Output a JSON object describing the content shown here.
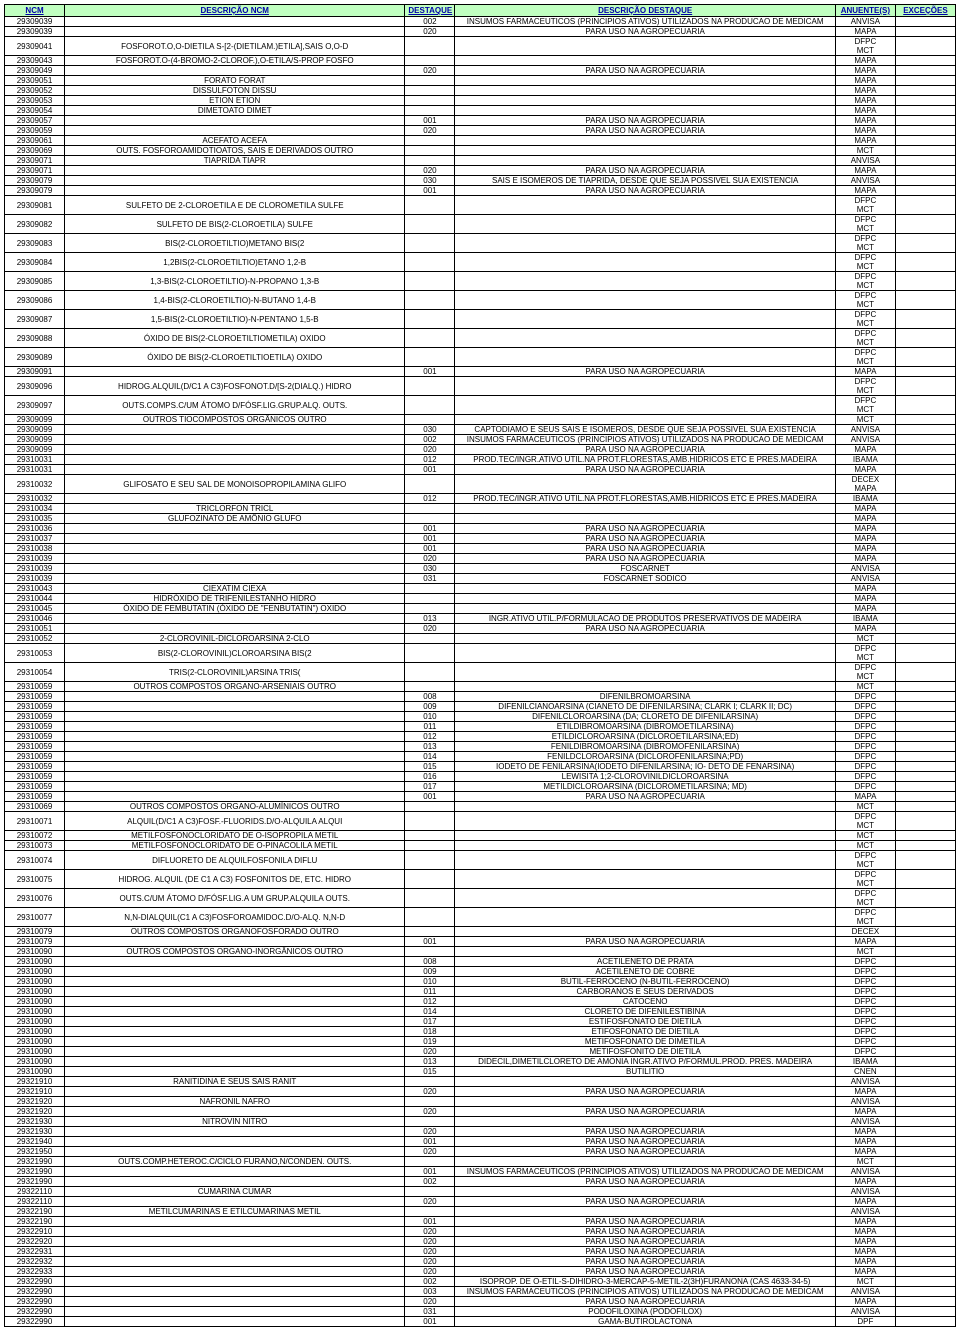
{
  "columns": [
    "NCM",
    "DESCRIÇÃO NCM",
    "DESTAQUE",
    "DESCRIÇÃO DESTAQUE",
    "ANUENTE(S)",
    "EXCEÇÕES"
  ],
  "rows": [
    [
      "29309039",
      "",
      "002",
      "INSUMOS FARMACEUTICOS (PRINCIPIOS ATIVOS) UTILIZADOS NA PRODUCAO DE MEDICAM",
      "ANVISA",
      ""
    ],
    [
      "29309039",
      "",
      "020",
      "PARA USO NA AGROPECUARIA",
      "MAPA",
      ""
    ],
    [
      "29309041",
      "FOSFOROT.O,O-DIETILA S-[2-(DIETILAM.)ETILA],SAIS        O,O-D",
      "",
      "",
      "DFPC\nMCT",
      "",
      true
    ],
    [
      "29309043",
      "FOSFOROT.O-(4-BROMO-2-CLOROF.),O-ETILA/S-PROP        FOSFO",
      "",
      "",
      "MAPA",
      ""
    ],
    [
      "29309049",
      "",
      "020",
      "PARA USO NA AGROPECUARIA",
      "MAPA",
      ""
    ],
    [
      "29309051",
      "FORATO                                              FORAT",
      "",
      "",
      "MAPA",
      ""
    ],
    [
      "29309052",
      "DISSULFOTON                                         DISSU",
      "",
      "",
      "MAPA",
      ""
    ],
    [
      "29309053",
      "ETION                                               ETION",
      "",
      "",
      "MAPA",
      ""
    ],
    [
      "29309054",
      "DIMETOATO                                           DIMET",
      "",
      "",
      "MAPA",
      ""
    ],
    [
      "29309057",
      "",
      "001",
      "PARA USO NA AGROPECUARIA",
      "MAPA",
      ""
    ],
    [
      "29309059",
      "",
      "020",
      "PARA USO NA AGROPECUARIA",
      "MAPA",
      ""
    ],
    [
      "29309061",
      "ACEFATO                                             ACEFA",
      "",
      "",
      "MAPA",
      ""
    ],
    [
      "29309069",
      "OUTS. FOSFOROAMIDOTIOATOS, SAIS E DERIVADOS        OUTRO",
      "",
      "",
      "MCT",
      ""
    ],
    [
      "29309071",
      "TIAPRIDA                                            TIAPR",
      "",
      "",
      "ANVISA",
      ""
    ],
    [
      "29309071",
      "",
      "020",
      "PARA USO NA AGROPECUARIA",
      "MAPA",
      ""
    ],
    [
      "29309079",
      "",
      "030",
      "SAIS E ISOMEROS DE TIAPRIDA, DESDE QUE SEJA POSSIVEL SUA EXISTENCIA",
      "ANVISA",
      ""
    ],
    [
      "29309079",
      "",
      "001",
      "PARA USO NA AGROPECUARIA",
      "MAPA",
      ""
    ],
    [
      "29309081",
      "SULFETO DE 2-CLOROETILA E DE CLOROMETILA        SULFE",
      "",
      "",
      "DFPC\nMCT",
      "",
      true
    ],
    [
      "29309082",
      "SULFETO DE BIS(2-CLOROETILA)                    SULFE",
      "",
      "",
      "DFPC\nMCT",
      "",
      true
    ],
    [
      "29309083",
      "BIS(2-CLOROETILTIO)METANO                       BIS(2",
      "",
      "",
      "DFPC\nMCT",
      "",
      true
    ],
    [
      "29309084",
      "1,2BIS(2-CLOROETILTIO)ETANO                     1,2-B",
      "",
      "",
      "DFPC\nMCT",
      "",
      true
    ],
    [
      "29309085",
      "1,3-BIS(2-CLOROETILTIO)-N-PROPANO               1,3-B",
      "",
      "",
      "DFPC\nMCT",
      "",
      true
    ],
    [
      "29309086",
      "1,4-BIS(2-CLOROETILTIO)-N-BUTANO                1,4-B",
      "",
      "",
      "DFPC\nMCT",
      "",
      true
    ],
    [
      "29309087",
      "1,5-BIS(2-CLOROETILTIO)-N-PENTANO               1,5-B",
      "",
      "",
      "DFPC\nMCT",
      "",
      true
    ],
    [
      "29309088",
      "ÓXIDO DE BIS(2-CLOROETILTIOMETILA)              OXIDO",
      "",
      "",
      "DFPC\nMCT",
      "",
      true
    ],
    [
      "29309089",
      "ÓXIDO DE BIS(2-CLOROETILTIOETILA)               OXIDO",
      "",
      "",
      "DFPC\nMCT",
      "",
      true
    ],
    [
      "29309091",
      "",
      "001",
      "PARA USO NA AGROPECUARIA",
      "MAPA",
      ""
    ],
    [
      "29309096",
      "HIDROG.ALQUIL(D/C1 A C3)FOSFONOT.D/[S-2(DIALQ.)     HIDRO",
      "",
      "",
      "DFPC\nMCT",
      "",
      true
    ],
    [
      "29309097",
      "OUTS.COMPS.C/UM ÁTOMO D/FÓSF.LIG.GRUP.ALQ.        OUTS.",
      "",
      "",
      "DFPC\nMCT",
      "",
      true
    ],
    [
      "29309099",
      "OUTROS TIOCOMPOSTOS ORGÂNICOS                   OUTRO",
      "",
      "",
      "MCT",
      ""
    ],
    [
      "29309099",
      "",
      "030",
      "CAPTODIAMO  E SEUS SAIS E ISOMEROS, DESDE QUE SEJA POSSIVEL SUA EXISTENCIA",
      "ANVISA",
      ""
    ],
    [
      "29309099",
      "",
      "002",
      "INSUMOS FARMACEUTICOS (PRINCIPIOS ATIVOS) UTILIZADOS NA PRODUCAO DE MEDICAM",
      "ANVISA",
      ""
    ],
    [
      "29309099",
      "",
      "020",
      "PARA USO NA AGROPECUARIA",
      "MAPA",
      ""
    ],
    [
      "29310031",
      "",
      "012",
      "PROD.TEC/INGR.ATIVO UTIL.NA PROT.FLORESTAS,AMB.HIDRICOS ETC E PRES.MADEIRA",
      "IBAMA",
      ""
    ],
    [
      "29310031",
      "",
      "001",
      "PARA USO NA AGROPECUARIA",
      "MAPA",
      ""
    ],
    [
      "29310032",
      "GLIFOSATO E SEU SAL DE MONOISOPROPILAMINA        GLIFO",
      "",
      "",
      "DECEX\nMAPA",
      "",
      true
    ],
    [
      "29310032",
      "",
      "012",
      "PROD.TEC/INGR.ATIVO UTIL.NA PROT.FLORESTAS,AMB.HIDRICOS ETC E PRES.MADEIRA",
      "IBAMA",
      ""
    ],
    [
      "29310034",
      "TRICLORFON                                       TRICL",
      "",
      "",
      "MAPA",
      ""
    ],
    [
      "29310035",
      "GLUFOZINATO DE AMÔNIO                            GLUFO",
      "",
      "",
      "MAPA",
      ""
    ],
    [
      "29310036",
      "",
      "001",
      "PARA USO NA AGROPECUARIA",
      "MAPA",
      ""
    ],
    [
      "29310037",
      "",
      "001",
      "PARA USO NA AGROPECUARIA",
      "MAPA",
      ""
    ],
    [
      "29310038",
      "",
      "001",
      "PARA USO NA AGROPECUARIA",
      "MAPA",
      ""
    ],
    [
      "29310039",
      "",
      "020",
      "PARA USO NA AGROPECUARIA",
      "MAPA",
      ""
    ],
    [
      "29310039",
      "",
      "030",
      "FOSCARNET",
      "ANVISA",
      ""
    ],
    [
      "29310039",
      "",
      "031",
      "FOSCARNET SODICO",
      "ANVISA",
      ""
    ],
    [
      "29310043",
      "CIEXATIM                                         CIEXA",
      "",
      "",
      "MAPA",
      ""
    ],
    [
      "29310044",
      "HIDRÓXIDO DE TRIFENILESTANHO                     HIDRO",
      "",
      "",
      "MAPA",
      ""
    ],
    [
      "29310045",
      "ÓXIDO DE FEMBUTATIN  (ÓXIDO DE \"FENBUTATIN\")        OXIDO",
      "",
      "",
      "MAPA",
      ""
    ],
    [
      "29310046",
      "",
      "013",
      "INGR.ATIVO UTIL.P/FORMULACAO DE PRODUTOS PRESERVATIVOS DE MADEIRA",
      "IBAMA",
      ""
    ],
    [
      "29310051",
      "",
      "020",
      "PARA USO NA AGROPECUARIA",
      "MAPA",
      ""
    ],
    [
      "29310052",
      "2-CLOROVINIL-DICLOROARSINA                       2-CLO",
      "",
      "",
      "MCT",
      ""
    ],
    [
      "29310053",
      "BIS(2-CLOROVINIL)CLOROARSINA                     BIS(2",
      "",
      "",
      "DFPC\nMCT",
      "",
      true
    ],
    [
      "29310054",
      "TRIS(2-CLOROVINIL)ARSINA                         TRIS(",
      "",
      "",
      "DFPC\nMCT",
      "",
      true
    ],
    [
      "29310059",
      "OUTROS COMPOSTOS ORGANO-ARSENIAIS                OUTRO",
      "",
      "",
      "MCT",
      ""
    ],
    [
      "29310059",
      "",
      "008",
      "DIFENILBROMOARSINA",
      "DFPC",
      ""
    ],
    [
      "29310059",
      "",
      "009",
      "DIFENILCIANOARSINA (CIANETO DE DIFENILARSINA;     CLARK I; CLARK II; DC)",
      "DFPC",
      ""
    ],
    [
      "29310059",
      "",
      "010",
      "DIFENILCLOROARSINA  (DA; CLORETO DE DIFENILARSINA)",
      "DFPC",
      ""
    ],
    [
      "29310059",
      "",
      "011",
      "ETILDIBROMOARSINA (DIBROMOETILARSINA)",
      "DFPC",
      ""
    ],
    [
      "29310059",
      "",
      "012",
      "ETILDICLOROARSINA (DICLOROETILARSINA;ED)",
      "DFPC",
      ""
    ],
    [
      "29310059",
      "",
      "013",
      "FENILDIBROMOARSINA (DIBROMOFENILARSINA)",
      "DFPC",
      ""
    ],
    [
      "29310059",
      "",
      "014",
      "FENILDCLOROARSINA (DICLOROFENILARSINA;PD)",
      "DFPC",
      ""
    ],
    [
      "29310059",
      "",
      "015",
      "IODETO DE FENILARSINA(IODETO  DIFENILARSINA; IO-    DETO DE FENARSINA)",
      "DFPC",
      ""
    ],
    [
      "29310059",
      "",
      "016",
      "LEWISITA 1;2-CLOROVINILDICLOROARSINA",
      "DFPC",
      ""
    ],
    [
      "29310059",
      "",
      "017",
      "METILDICLOROARSINA (DICLOROMETILARSINA; MD)",
      "DFPC",
      ""
    ],
    [
      "29310059",
      "",
      "001",
      "PARA USO NA AGROPECUARIA",
      "MAPA",
      ""
    ],
    [
      "29310069",
      "OUTROS COMPOSTOS ORGANO-ALUMÍNICOS               OUTRO",
      "",
      "",
      "MCT",
      ""
    ],
    [
      "29310071",
      "ALQUIL(D/C1 A C3)FOSF.-FLUORIDS.D/O-ALQUILA        ALQUI",
      "",
      "",
      "DFPC\nMCT",
      "",
      true
    ],
    [
      "29310072",
      "METILFOSFONOCLORIDATO DE O-ISOPROPILA            METIL",
      "",
      "",
      "MCT",
      ""
    ],
    [
      "29310073",
      "METILFOSFONOCLORIDATO DE O-PINACOLILA            METIL",
      "",
      "",
      "MCT",
      ""
    ],
    [
      "29310074",
      "DIFLUORETO DE ALQUILFOSFONILA                    DIFLU",
      "",
      "",
      "DFPC\nMCT",
      "",
      true
    ],
    [
      "29310075",
      "HIDROG. ALQUIL (DE C1 A C3) FOSFONITOS DE, ETC.        HIDRO",
      "",
      "",
      "DFPC\nMCT",
      "",
      true
    ],
    [
      "29310076",
      "OUTS.C/UM ÁTOMO D/FÓSF.LIG.A UM GRUP.ALQUILA        OUTS.",
      "",
      "",
      "DFPC\nMCT",
      "",
      true
    ],
    [
      "29310077",
      "N,N-DIALQUIL(C1 A C3)FOSFOROAMIDOC.D/O-ALQ.        N,N-D",
      "",
      "",
      "DFPC\nMCT",
      "",
      true
    ],
    [
      "29310079",
      "OUTROS COMPOSTOS ORGANOFOSFORADO                 OUTRO",
      "",
      "",
      "DECEX",
      ""
    ],
    [
      "29310079",
      "",
      "001",
      "PARA USO NA AGROPECUARIA",
      "MAPA",
      ""
    ],
    [
      "29310090",
      "OUTROS COMPOSTOS ORGANO-INORGÂNICOS              OUTRO",
      "",
      "",
      "MCT",
      ""
    ],
    [
      "29310090",
      "",
      "008",
      "ACETILENETO DE PRATA",
      "DFPC",
      ""
    ],
    [
      "29310090",
      "",
      "009",
      "ACETILENETO DE COBRE",
      "DFPC",
      ""
    ],
    [
      "29310090",
      "",
      "010",
      "BUTIL-FERROCENO (N-BUTIL-FERROCENO)",
      "DFPC",
      ""
    ],
    [
      "29310090",
      "",
      "011",
      "CARBORANOS E SEUS DERIVADOS",
      "DFPC",
      ""
    ],
    [
      "29310090",
      "",
      "012",
      "CATOCENO",
      "DFPC",
      ""
    ],
    [
      "29310090",
      "",
      "014",
      "CLORETO DE DIFENILESTIBINA",
      "DFPC",
      ""
    ],
    [
      "29310090",
      "",
      "017",
      "ESTIFOSFONATO DE DIETILA",
      "DFPC",
      ""
    ],
    [
      "29310090",
      "",
      "018",
      "ETIFOSFONATO DE DIETILA",
      "DFPC",
      ""
    ],
    [
      "29310090",
      "",
      "019",
      "METIFOSFONATO DE DIMETILA",
      "DFPC",
      ""
    ],
    [
      "29310090",
      "",
      "020",
      "METIFOSFONITO DE DIETILA",
      "DFPC",
      ""
    ],
    [
      "29310090",
      "",
      "013",
      "DIDECIL,DIMETILCLORETO DE AMONIA INGR.ATIVO P/FORMUL.PROD. PRES. MADEIRA",
      "IBAMA",
      ""
    ],
    [
      "29310090",
      "",
      "015",
      "BUTILITIO",
      "CNEN",
      ""
    ],
    [
      "29321910",
      "RANITIDINA E SEUS SAIS                           RANIT",
      "",
      "",
      "ANVISA",
      ""
    ],
    [
      "29321910",
      "",
      "020",
      "PARA USO NA AGROPECUARIA",
      "MAPA",
      ""
    ],
    [
      "29321920",
      "NAFRONIL                                         NAFRO",
      "",
      "",
      "ANVISA",
      ""
    ],
    [
      "29321920",
      "",
      "020",
      "PARA USO NA AGROPECUARIA",
      "MAPA",
      ""
    ],
    [
      "29321930",
      "NITROVIN                                         NITRO",
      "",
      "",
      "ANVISA",
      ""
    ],
    [
      "29321930",
      "",
      "020",
      "PARA USO NA AGROPECUARIA",
      "MAPA",
      ""
    ],
    [
      "29321940",
      "",
      "001",
      "PARA USO NA AGROPECUARIA",
      "MAPA",
      ""
    ],
    [
      "29321950",
      "",
      "020",
      "PARA USO NA AGROPECUARIA",
      "MAPA",
      ""
    ],
    [
      "29321990",
      "OUTS.COMP.HETEROC.C/CICLO FURANO,N/CONDEN.        OUTS.",
      "",
      "",
      "MCT",
      ""
    ],
    [
      "29321990",
      "",
      "001",
      "INSUMOS FARMACEUTICOS (PRINCIPIOS ATIVOS) UTILIZADOS NA PRODUCAO DE MEDICAM",
      "ANVISA",
      ""
    ],
    [
      "29321990",
      "",
      "002",
      "PARA USO NA AGROPECUARIA",
      "MAPA",
      ""
    ],
    [
      "29322110",
      "CUMARINA                                         CUMAR",
      "",
      "",
      "ANVISA",
      ""
    ],
    [
      "29322110",
      "",
      "020",
      "PARA USO NA AGROPECUARIA",
      "MAPA",
      ""
    ],
    [
      "29322190",
      "METILCUMARINAS E ETILCUMARINAS                   METIL",
      "",
      "",
      "ANVISA",
      ""
    ],
    [
      "29322190",
      "",
      "001",
      "PARA USO NA AGROPECUARIA",
      "MAPA",
      ""
    ],
    [
      "29322910",
      "",
      "020",
      "PARA USO NA AGROPECUARIA",
      "MAPA",
      ""
    ],
    [
      "29322920",
      "",
      "020",
      "PARA USO NA AGROPECUARIA",
      "MAPA",
      ""
    ],
    [
      "29322931",
      "",
      "020",
      "PARA USO NA AGROPECUARIA",
      "MAPA",
      ""
    ],
    [
      "29322932",
      "",
      "020",
      "PARA USO NA AGROPECUARIA",
      "MAPA",
      ""
    ],
    [
      "29322933",
      "",
      "020",
      "PARA USO NA AGROPECUARIA",
      "MAPA",
      ""
    ],
    [
      "29322990",
      "",
      "002",
      "ISOPROP. DE O-ETIL-S-DIHIDRO-3-MERCAP-5-METIL-2(3H)FURANONA (CAS 4633-34-5)",
      "MCT",
      ""
    ],
    [
      "29322990",
      "",
      "003",
      "INSUMOS FARMACEUTICOS (PRINCIPIOS ATIVOS) UTILIZADOS NA PRODUCAO DE MEDICAM",
      "ANVISA",
      ""
    ],
    [
      "29322990",
      "",
      "020",
      "PARA USO NA AGROPECUARIA",
      "MAPA",
      ""
    ],
    [
      "29322990",
      "",
      "031",
      "PODOFILOXINA (PODOFILOX)",
      "ANVISA",
      ""
    ],
    [
      "29322990",
      "",
      "001",
      "GAMA-BUTIROLACTONA",
      "DPF",
      ""
    ]
  ]
}
